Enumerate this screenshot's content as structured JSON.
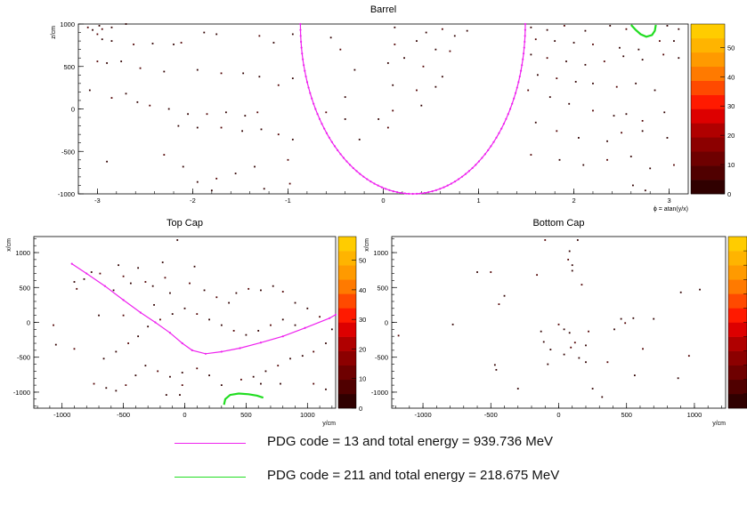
{
  "colors": {
    "muon": "#ee22ee",
    "pion": "#22dd22",
    "palette": [
      "#300000",
      "#500000",
      "#6e0000",
      "#8c0000",
      "#b00000",
      "#dd0000",
      "#ff1a00",
      "#ff4a00",
      "#ff7a00",
      "#ff9a00",
      "#ffb400",
      "#ffcc00"
    ]
  },
  "legend": [
    {
      "text": "PDG code = 13 and total energy = 939.736 MeV",
      "color": "#ee22ee"
    },
    {
      "text": "PDG code = 211 and total energy = 218.675 MeV",
      "color": "#22dd22"
    }
  ],
  "chart_data": [
    {
      "type": "scatter",
      "title": "Barrel",
      "xlabel": "ϕ = atan(y/x)",
      "ylabel": "z/cm",
      "xlim": [
        -3.2,
        3.2
      ],
      "ylim": [
        -1000,
        1000
      ],
      "xticks": [
        -3,
        -2,
        -1,
        0,
        1,
        2,
        3
      ],
      "yticks": [
        -1000,
        -500,
        0,
        500,
        1000
      ],
      "zlim": [
        0,
        58
      ],
      "zticks": [
        0,
        10,
        20,
        30,
        40,
        50
      ],
      "series": [
        {
          "kind": "curve",
          "color_key": "muon",
          "shape": "ellipse",
          "center": [
            0.31,
            1000
          ],
          "radius": [
            1.18,
            2000
          ]
        },
        {
          "kind": "curve",
          "color_key": "pion",
          "points": [
            [
              2.6,
              990
            ],
            [
              2.65,
              930
            ],
            [
              2.7,
              880
            ],
            [
              2.76,
              850
            ],
            [
              2.82,
              870
            ],
            [
              2.85,
              920
            ],
            [
              2.86,
              990
            ]
          ]
        }
      ],
      "hits": [
        [
          -3.1,
          960
        ],
        [
          -3.05,
          930
        ],
        [
          -2.98,
          980
        ],
        [
          -2.95,
          940
        ],
        [
          -2.85,
          960
        ],
        [
          -2.7,
          1000
        ],
        [
          -3.0,
          880
        ],
        [
          -2.95,
          820
        ],
        [
          -2.85,
          800
        ],
        [
          -2.62,
          760
        ],
        [
          -2.42,
          770
        ],
        [
          -2.2,
          760
        ],
        [
          -2.12,
          780
        ],
        [
          -1.88,
          900
        ],
        [
          -1.75,
          880
        ],
        [
          -1.3,
          860
        ],
        [
          -1.15,
          780
        ],
        [
          -0.95,
          880
        ],
        [
          -3.0,
          560
        ],
        [
          -2.9,
          540
        ],
        [
          -2.75,
          560
        ],
        [
          -2.55,
          480
        ],
        [
          -2.3,
          440
        ],
        [
          -1.95,
          460
        ],
        [
          -1.7,
          420
        ],
        [
          -1.47,
          420
        ],
        [
          -1.3,
          380
        ],
        [
          -1.1,
          280
        ],
        [
          -0.95,
          360
        ],
        [
          -3.08,
          220
        ],
        [
          -2.85,
          130
        ],
        [
          -2.7,
          180
        ],
        [
          -2.58,
          80
        ],
        [
          -2.45,
          40
        ],
        [
          -2.25,
          0
        ],
        [
          -2.05,
          -60
        ],
        [
          -1.85,
          -60
        ],
        [
          -1.65,
          -40
        ],
        [
          -1.45,
          -80
        ],
        [
          -1.32,
          -40
        ],
        [
          -2.15,
          -200
        ],
        [
          -1.95,
          -220
        ],
        [
          -1.7,
          -220
        ],
        [
          -1.48,
          -260
        ],
        [
          -1.28,
          -240
        ],
        [
          -1.1,
          -300
        ],
        [
          -0.95,
          -360
        ],
        [
          -2.9,
          -620
        ],
        [
          -2.3,
          -540
        ],
        [
          -2.1,
          -680
        ],
        [
          -1.95,
          -860
        ],
        [
          -1.75,
          -820
        ],
        [
          -1.55,
          -760
        ],
        [
          -1.35,
          -680
        ],
        [
          -1.0,
          -600
        ],
        [
          -1.8,
          -960
        ],
        [
          -1.25,
          -940
        ],
        [
          -0.98,
          -880
        ],
        [
          0.12,
          960
        ],
        [
          0.45,
          900
        ],
        [
          0.62,
          940
        ],
        [
          0.75,
          860
        ],
        [
          0.88,
          920
        ],
        [
          0.12,
          760
        ],
        [
          0.35,
          800
        ],
        [
          0.55,
          700
        ],
        [
          0.7,
          680
        ],
        [
          0.05,
          540
        ],
        [
          0.22,
          600
        ],
        [
          0.42,
          500
        ],
        [
          0.62,
          380
        ],
        [
          0.1,
          280
        ],
        [
          0.35,
          220
        ],
        [
          0.55,
          260
        ],
        [
          -0.3,
          460
        ],
        [
          -0.45,
          700
        ],
        [
          -0.55,
          840
        ],
        [
          -0.4,
          140
        ],
        [
          -0.6,
          -40
        ],
        [
          -0.4,
          -120
        ],
        [
          -0.25,
          -360
        ],
        [
          0.1,
          -20
        ],
        [
          0.4,
          40
        ],
        [
          -0.05,
          -120
        ],
        [
          0.05,
          -220
        ],
        [
          1.55,
          960
        ],
        [
          1.72,
          930
        ],
        [
          1.9,
          980
        ],
        [
          2.12,
          920
        ],
        [
          2.38,
          980
        ],
        [
          2.55,
          940
        ],
        [
          2.98,
          980
        ],
        [
          3.1,
          940
        ],
        [
          1.6,
          820
        ],
        [
          1.8,
          800
        ],
        [
          2.0,
          780
        ],
        [
          2.2,
          760
        ],
        [
          2.48,
          720
        ],
        [
          2.68,
          700
        ],
        [
          2.9,
          800
        ],
        [
          3.05,
          800
        ],
        [
          1.55,
          640
        ],
        [
          1.72,
          600
        ],
        [
          1.92,
          560
        ],
        [
          2.12,
          520
        ],
        [
          2.32,
          560
        ],
        [
          2.52,
          620
        ],
        [
          2.72,
          580
        ],
        [
          2.94,
          640
        ],
        [
          3.1,
          600
        ],
        [
          1.62,
          400
        ],
        [
          1.82,
          360
        ],
        [
          2.02,
          320
        ],
        [
          2.2,
          300
        ],
        [
          2.45,
          260
        ],
        [
          2.65,
          300
        ],
        [
          2.85,
          220
        ],
        [
          1.52,
          220
        ],
        [
          1.75,
          140
        ],
        [
          1.95,
          60
        ],
        [
          2.2,
          -20
        ],
        [
          2.42,
          -80
        ],
        [
          2.55,
          -60
        ],
        [
          2.72,
          -140
        ],
        [
          2.95,
          -40
        ],
        [
          1.6,
          -160
        ],
        [
          1.82,
          -260
        ],
        [
          2.05,
          -340
        ],
        [
          2.35,
          -380
        ],
        [
          2.5,
          -280
        ],
        [
          2.72,
          -260
        ],
        [
          2.98,
          -340
        ],
        [
          1.55,
          -540
        ],
        [
          1.85,
          -600
        ],
        [
          2.1,
          -660
        ],
        [
          2.35,
          -600
        ],
        [
          2.6,
          -560
        ],
        [
          2.8,
          -700
        ],
        [
          3.05,
          -660
        ],
        [
          2.62,
          -900
        ],
        [
          2.75,
          -960
        ]
      ]
    },
    {
      "type": "scatter",
      "title": "Top Cap",
      "xlabel": "y/cm",
      "ylabel": "x/cm",
      "xlim": [
        -1230,
        1230
      ],
      "ylim": [
        -1230,
        1230
      ],
      "xticks": [
        -1000,
        -500,
        0,
        500,
        1000
      ],
      "yticks": [
        -1000,
        -500,
        0,
        500,
        1000
      ],
      "zlim": [
        0,
        58
      ],
      "zticks": [
        0,
        10,
        20,
        30,
        40,
        50
      ],
      "series": [
        {
          "kind": "curve",
          "color_key": "muon",
          "points": [
            [
              -920,
              840
            ],
            [
              -800,
              700
            ],
            [
              -650,
              520
            ],
            [
              -500,
              320
            ],
            [
              -360,
              140
            ],
            [
              -240,
              0
            ],
            [
              -120,
              -150
            ],
            [
              -20,
              -300
            ],
            [
              60,
              -400
            ],
            [
              170,
              -450
            ],
            [
              300,
              -420
            ],
            [
              450,
              -370
            ],
            [
              620,
              -290
            ],
            [
              800,
              -200
            ],
            [
              980,
              -80
            ],
            [
              1180,
              60
            ],
            [
              1230,
              110
            ]
          ]
        },
        {
          "kind": "curve",
          "color_key": "pion",
          "points": [
            [
              320,
              -1180
            ],
            [
              330,
              -1100
            ],
            [
              370,
              -1040
            ],
            [
              440,
              -1020
            ],
            [
              520,
              -1030
            ],
            [
              590,
              -1050
            ],
            [
              640,
              -1080
            ]
          ]
        }
      ],
      "hits": [
        [
          -1070,
          -40
        ],
        [
          -1050,
          -320
        ],
        [
          -900,
          580
        ],
        [
          -880,
          480
        ],
        [
          -820,
          620
        ],
        [
          -760,
          720
        ],
        [
          -690,
          700
        ],
        [
          -580,
          460
        ],
        [
          -540,
          820
        ],
        [
          -500,
          660
        ],
        [
          -440,
          560
        ],
        [
          -380,
          780
        ],
        [
          -320,
          580
        ],
        [
          -260,
          520
        ],
        [
          -180,
          860
        ],
        [
          -160,
          640
        ],
        [
          -120,
          420
        ],
        [
          -60,
          1180
        ],
        [
          40,
          560
        ],
        [
          80,
          800
        ],
        [
          160,
          460
        ],
        [
          260,
          360
        ],
        [
          360,
          280
        ],
        [
          420,
          420
        ],
        [
          520,
          480
        ],
        [
          620,
          460
        ],
        [
          720,
          520
        ],
        [
          800,
          440
        ],
        [
          900,
          280
        ],
        [
          1000,
          200
        ],
        [
          1100,
          80
        ],
        [
          1200,
          -100
        ],
        [
          1150,
          -300
        ],
        [
          1050,
          -420
        ],
        [
          960,
          -480
        ],
        [
          860,
          -520
        ],
        [
          760,
          -620
        ],
        [
          660,
          -700
        ],
        [
          560,
          -780
        ],
        [
          460,
          -820
        ],
        [
          300,
          -900
        ],
        [
          200,
          -760
        ],
        [
          100,
          -660
        ],
        [
          -20,
          -720
        ],
        [
          -120,
          -780
        ],
        [
          -220,
          -700
        ],
        [
          -320,
          -620
        ],
        [
          -400,
          -760
        ],
        [
          -480,
          -900
        ],
        [
          -560,
          -980
        ],
        [
          -640,
          -940
        ],
        [
          -740,
          -880
        ],
        [
          -660,
          -520
        ],
        [
          -560,
          -420
        ],
        [
          -460,
          -300
        ],
        [
          -380,
          -200
        ],
        [
          -300,
          -60
        ],
        [
          -200,
          40
        ],
        [
          -100,
          120
        ],
        [
          0,
          200
        ],
        [
          100,
          120
        ],
        [
          200,
          40
        ],
        [
          300,
          -40
        ],
        [
          400,
          -120
        ],
        [
          500,
          -180
        ],
        [
          600,
          -120
        ],
        [
          700,
          -40
        ],
        [
          800,
          40
        ],
        [
          900,
          -40
        ],
        [
          -900,
          -380
        ],
        [
          -150,
          -1040
        ],
        [
          -40,
          -1040
        ],
        [
          -20,
          -900
        ],
        [
          620,
          -880
        ],
        [
          780,
          -880
        ],
        [
          1050,
          -880
        ],
        [
          1150,
          -960
        ],
        [
          -250,
          250
        ],
        [
          -500,
          100
        ],
        [
          -700,
          100
        ]
      ]
    },
    {
      "type": "scatter",
      "title": "Bottom Cap",
      "xlabel": "y/cm",
      "ylabel": "x/cm",
      "xlim": [
        -1230,
        1230
      ],
      "ylim": [
        -1230,
        1230
      ],
      "xticks": [
        -1000,
        -500,
        0,
        500,
        1000
      ],
      "yticks": [
        -1000,
        -500,
        0,
        500,
        1000
      ],
      "series": [],
      "hits": [
        [
          -1180,
          -190
        ],
        [
          -780,
          -30
        ],
        [
          -600,
          720
        ],
        [
          -500,
          720
        ],
        [
          -470,
          -610
        ],
        [
          -460,
          -680
        ],
        [
          -440,
          260
        ],
        [
          -400,
          380
        ],
        [
          -300,
          -950
        ],
        [
          -160,
          680
        ],
        [
          -130,
          -130
        ],
        [
          -110,
          -280
        ],
        [
          -100,
          1180
        ],
        [
          -80,
          -600
        ],
        [
          -60,
          -390
        ],
        [
          0,
          -30
        ],
        [
          40,
          -100
        ],
        [
          40,
          -460
        ],
        [
          70,
          900
        ],
        [
          80,
          1020
        ],
        [
          80,
          -150
        ],
        [
          90,
          -360
        ],
        [
          100,
          740
        ],
        [
          100,
          820
        ],
        [
          120,
          -290
        ],
        [
          140,
          1180
        ],
        [
          150,
          -510
        ],
        [
          170,
          540
        ],
        [
          200,
          -330
        ],
        [
          200,
          -570
        ],
        [
          220,
          -130
        ],
        [
          250,
          -950
        ],
        [
          320,
          -1070
        ],
        [
          360,
          -570
        ],
        [
          410,
          -100
        ],
        [
          460,
          50
        ],
        [
          490,
          -10
        ],
        [
          550,
          60
        ],
        [
          560,
          -760
        ],
        [
          620,
          -380
        ],
        [
          700,
          50
        ],
        [
          900,
          430
        ],
        [
          960,
          -480
        ],
        [
          1040,
          470
        ],
        [
          880,
          -800
        ]
      ]
    }
  ]
}
